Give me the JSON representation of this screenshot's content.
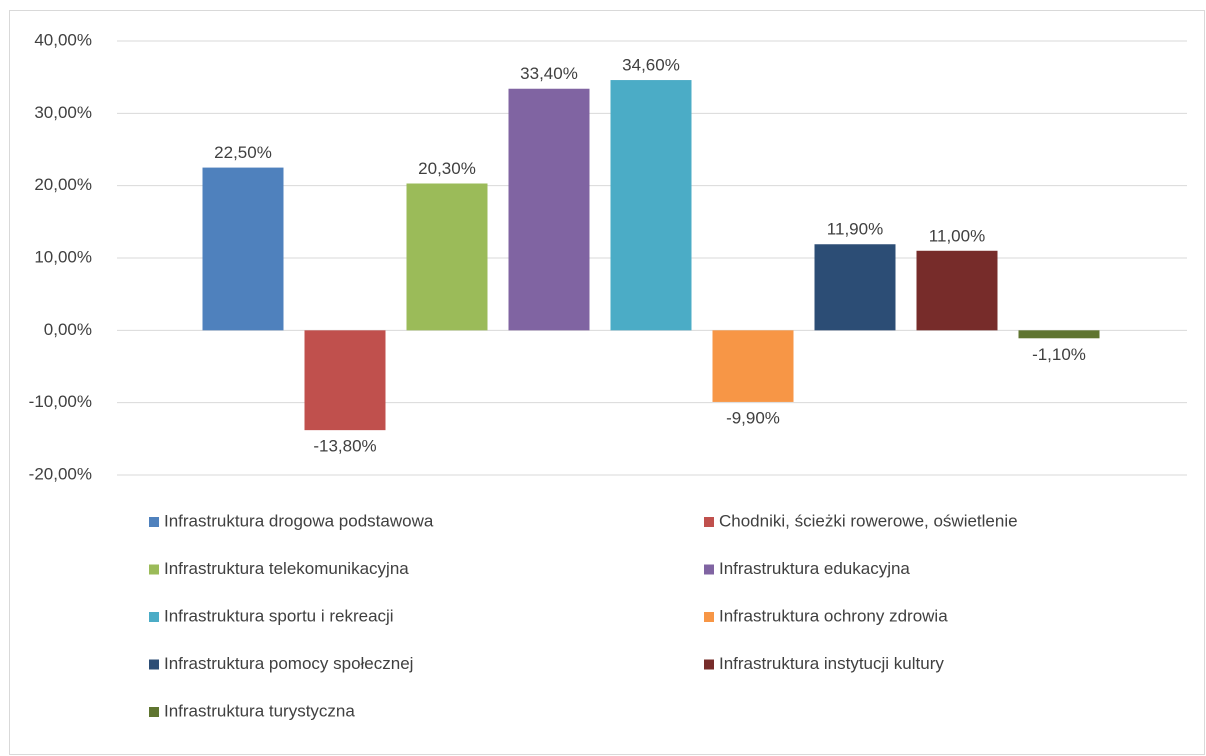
{
  "chart_data": {
    "type": "bar",
    "series": [
      {
        "name": "Infrastruktura drogowa podstawowa",
        "color": "#4f81bd",
        "values": [
          22.5
        ],
        "value_labels": [
          "22,50%"
        ]
      },
      {
        "name": "Chodniki, ścieżki rowerowe, oświetlenie",
        "color": "#c0504d",
        "values": [
          -13.8
        ],
        "value_labels": [
          "-13,80%"
        ]
      },
      {
        "name": "Infrastruktura telekomunikacyjna",
        "color": "#9bbb59",
        "values": [
          20.3
        ],
        "value_labels": [
          "20,30%"
        ]
      },
      {
        "name": "Infrastruktura edukacyjna",
        "color": "#8064a2",
        "values": [
          33.4
        ],
        "value_labels": [
          "33,40%"
        ]
      },
      {
        "name": "Infrastruktura sportu i rekreacji",
        "color": "#4bacc6",
        "values": [
          34.6
        ],
        "value_labels": [
          "34,60%"
        ]
      },
      {
        "name": "Infrastruktura ochrony zdrowia",
        "color": "#f79646",
        "values": [
          -9.9
        ],
        "value_labels": [
          "-9,90%"
        ]
      },
      {
        "name": "Infrastruktura pomocy społecznej",
        "color": "#2c4d75",
        "values": [
          11.9
        ],
        "value_labels": [
          "11,90%"
        ]
      },
      {
        "name": "Infrastruktura instytucji kultury",
        "color": "#772c2a",
        "values": [
          11.0
        ],
        "value_labels": [
          "11,00%"
        ]
      },
      {
        "name": "Infrastruktura turystyczna",
        "color": "#5f7530",
        "values": [
          -1.1
        ],
        "value_labels": [
          "-1,10%"
        ]
      }
    ],
    "ylim": [
      -20,
      40
    ],
    "yticks": [
      {
        "value": -20,
        "label": "-20,00%"
      },
      {
        "value": -10,
        "label": "-10,00%"
      },
      {
        "value": 0,
        "label": "0,00%"
      },
      {
        "value": 10,
        "label": "10,00%"
      },
      {
        "value": 20,
        "label": "20,00%"
      },
      {
        "value": 30,
        "label": "30,00%"
      },
      {
        "value": 40,
        "label": "40,00%"
      }
    ],
    "grid": true,
    "legend": "bottom"
  }
}
